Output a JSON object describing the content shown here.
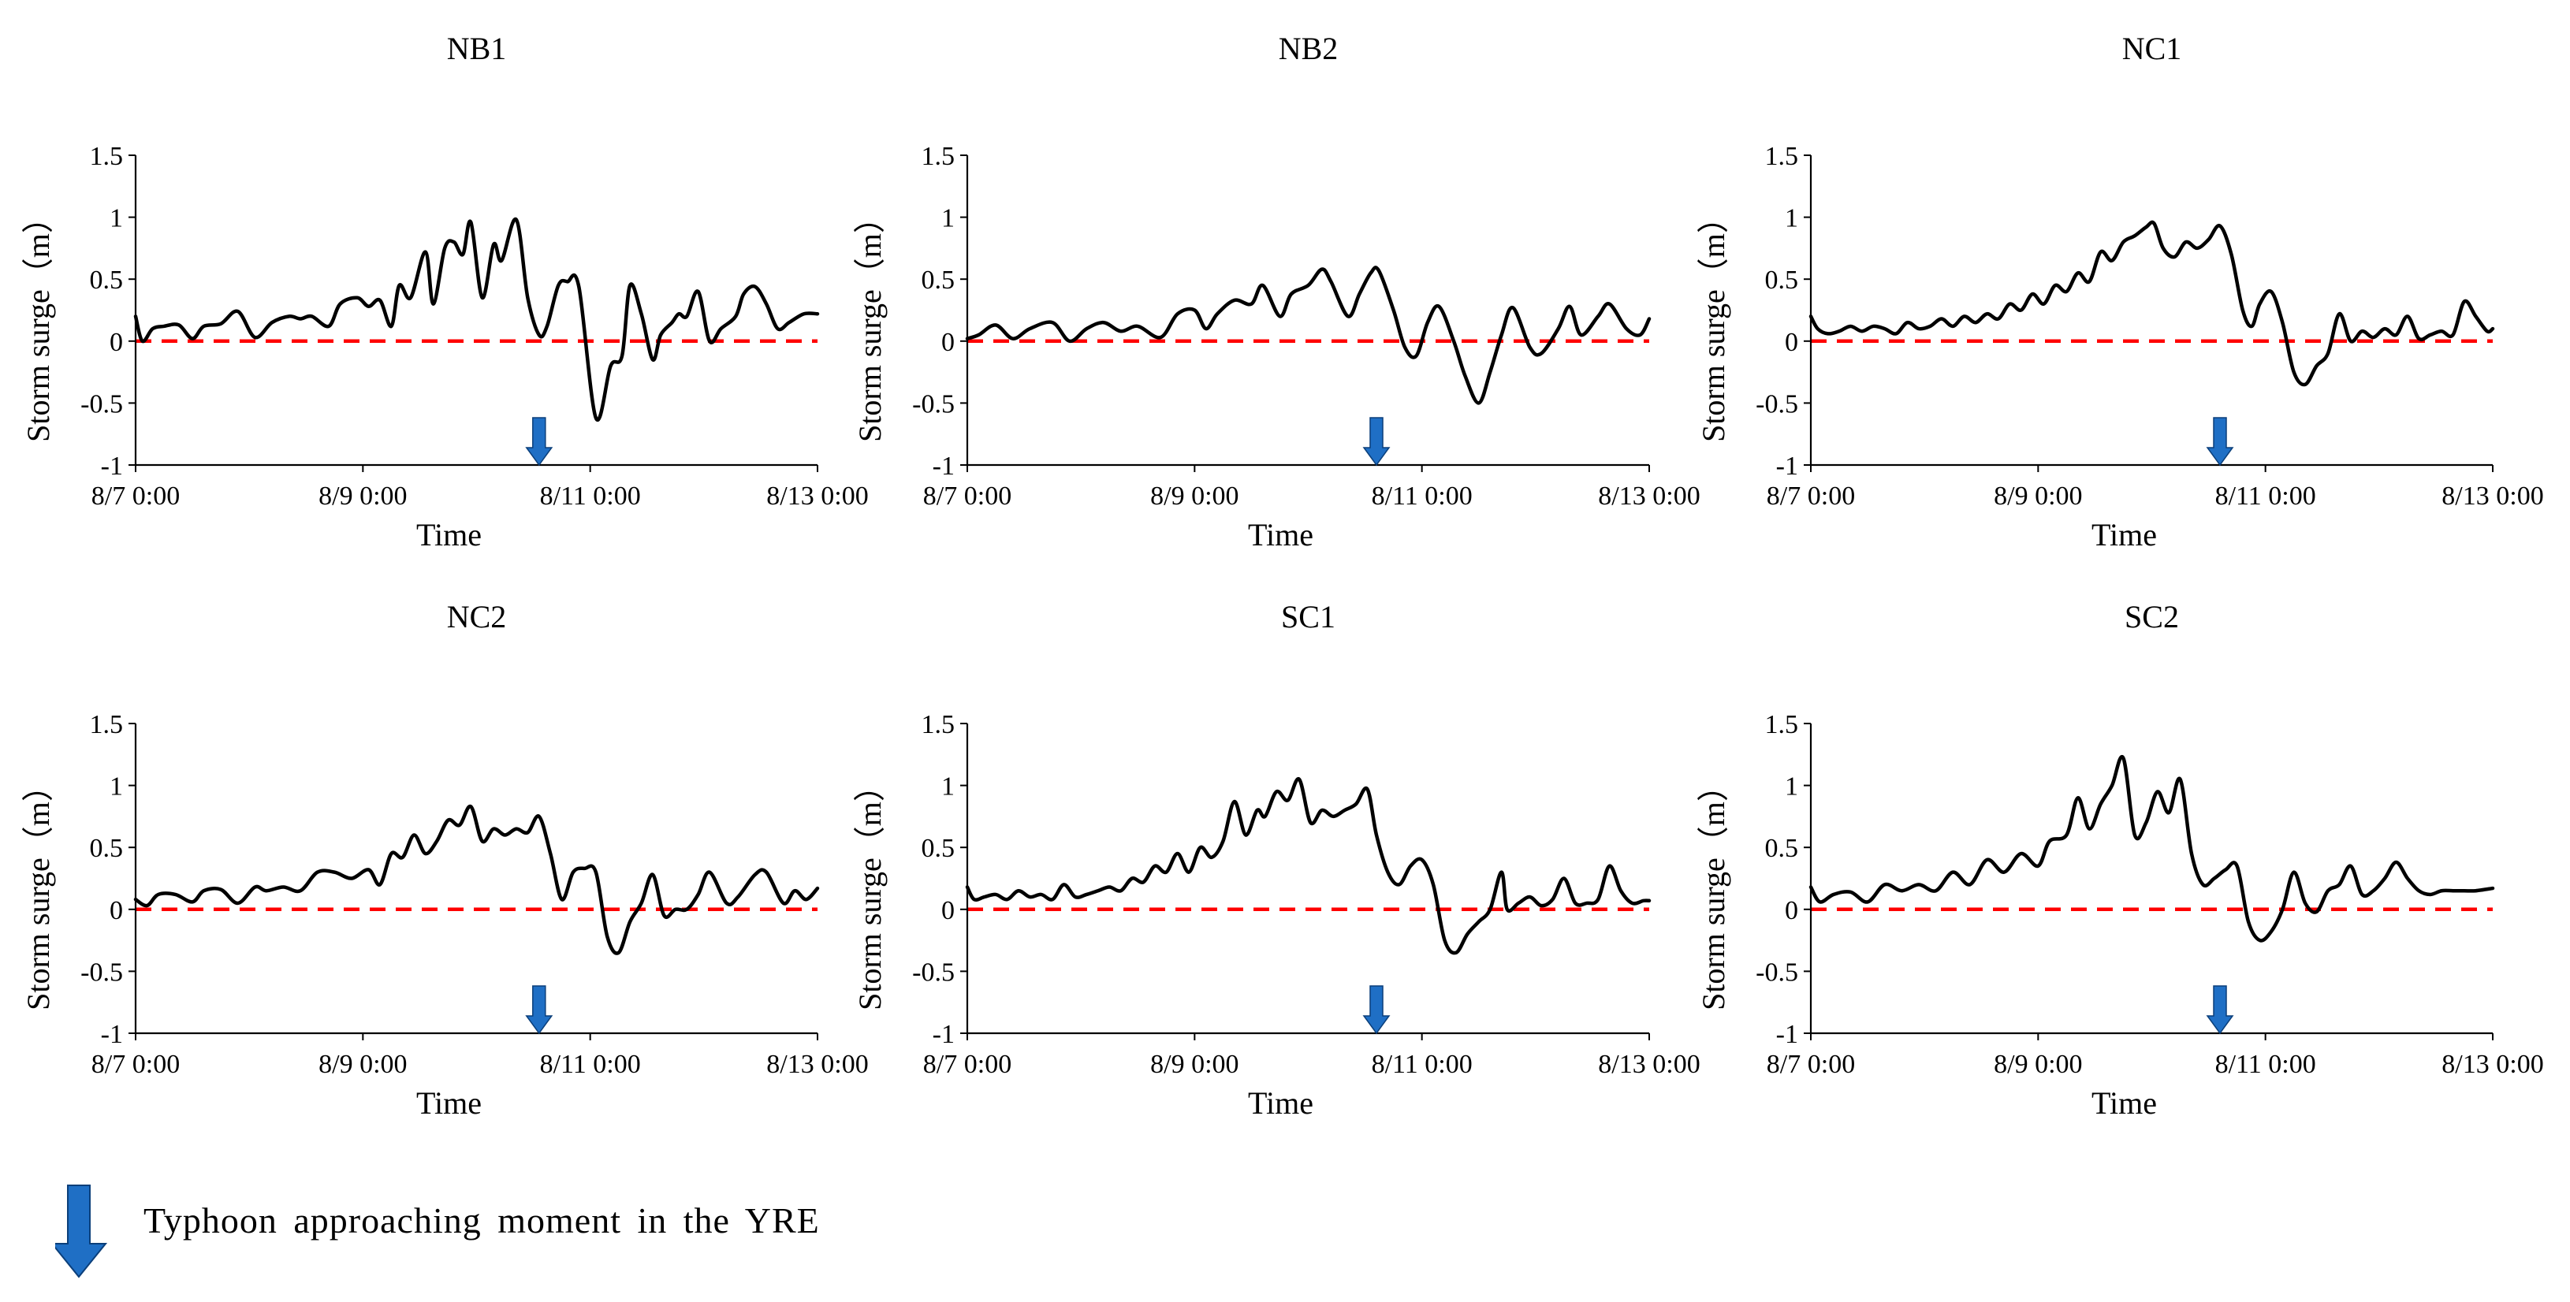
{
  "figure": {
    "legend_label": "Typhoon approaching moment in the YRE",
    "colors": {
      "series": "#000000",
      "zero_line": "#ff0000",
      "arrow": "#1f6fc5",
      "arrow_edge": "#0b3f7a",
      "axis": "#000000"
    }
  },
  "chart_data": [
    {
      "type": "line",
      "title": "NB1",
      "xlabel": "Time",
      "ylabel": "Storm surge（m）",
      "xlim": [
        0,
        6
      ],
      "ylim": [
        -1,
        1.5
      ],
      "yticks": [
        -1,
        -0.5,
        0,
        0.5,
        1,
        1.5
      ],
      "ytick_labels": [
        "-1",
        "-0.5",
        "0",
        "0.5",
        "1",
        "1.5"
      ],
      "xticks": [
        0,
        2,
        4,
        6
      ],
      "xtick_labels": [
        "8/7 0:00",
        "8/9 0:00",
        "8/11 0:00",
        "8/13 0:00"
      ],
      "typhoon_time": 3.55,
      "reference_line": 0,
      "series": [
        {
          "name": "Storm surge",
          "x": [
            0,
            0.06,
            0.15,
            0.25,
            0.38,
            0.5,
            0.6,
            0.75,
            0.9,
            1.05,
            1.2,
            1.35,
            1.45,
            1.55,
            1.7,
            1.8,
            1.95,
            2.05,
            2.15,
            2.25,
            2.32,
            2.42,
            2.55,
            2.62,
            2.72,
            2.8,
            2.88,
            2.95,
            3.05,
            3.15,
            3.22,
            3.35,
            3.45,
            3.55,
            3.62,
            3.72,
            3.8,
            3.9,
            4.05,
            4.18,
            4.28,
            4.35,
            4.45,
            4.55,
            4.62,
            4.72,
            4.78,
            4.85,
            4.95,
            5.05,
            5.15,
            5.28,
            5.35,
            5.45,
            5.55,
            5.65,
            5.75,
            5.88,
            6.0
          ],
          "y": [
            0.2,
            0.0,
            0.1,
            0.12,
            0.13,
            0.02,
            0.12,
            0.14,
            0.24,
            0.03,
            0.15,
            0.2,
            0.18,
            0.2,
            0.12,
            0.3,
            0.35,
            0.28,
            0.33,
            0.12,
            0.45,
            0.35,
            0.72,
            0.3,
            0.75,
            0.8,
            0.7,
            0.96,
            0.35,
            0.78,
            0.65,
            0.98,
            0.35,
            0.05,
            0.12,
            0.45,
            0.48,
            0.44,
            -0.62,
            -0.2,
            -0.12,
            0.45,
            0.22,
            -0.15,
            0.05,
            0.15,
            0.22,
            0.2,
            0.4,
            0.0,
            0.1,
            0.2,
            0.38,
            0.44,
            0.3,
            0.1,
            0.15,
            0.22,
            0.22
          ]
        }
      ]
    },
    {
      "type": "line",
      "title": "NB2",
      "xlabel": "Time",
      "ylabel": "Storm surge（m）",
      "xlim": [
        0,
        6
      ],
      "ylim": [
        -1,
        1.5
      ],
      "yticks": [
        -1,
        -0.5,
        0,
        0.5,
        1,
        1.5
      ],
      "ytick_labels": [
        "-1",
        "-0.5",
        "0",
        "0.5",
        "1",
        "1.5"
      ],
      "xticks": [
        0,
        2,
        4,
        6
      ],
      "xtick_labels": [
        "8/7 0:00",
        "8/9 0:00",
        "8/11 0:00",
        "8/13 0:00"
      ],
      "typhoon_time": 3.6,
      "reference_line": 0,
      "series": [
        {
          "name": "Storm surge",
          "x": [
            0,
            0.1,
            0.25,
            0.4,
            0.55,
            0.75,
            0.9,
            1.05,
            1.2,
            1.35,
            1.5,
            1.7,
            1.85,
            2.0,
            2.1,
            2.2,
            2.35,
            2.5,
            2.6,
            2.75,
            2.85,
            3.0,
            3.12,
            3.2,
            3.35,
            3.45,
            3.55,
            3.62,
            3.75,
            3.85,
            3.95,
            4.05,
            4.15,
            4.28,
            4.38,
            4.5,
            4.6,
            4.7,
            4.8,
            4.95,
            5.05,
            5.2,
            5.3,
            5.4,
            5.55,
            5.65,
            5.8,
            5.92,
            6.0
          ],
          "y": [
            0.02,
            0.05,
            0.13,
            0.02,
            0.1,
            0.15,
            0.0,
            0.1,
            0.15,
            0.08,
            0.12,
            0.03,
            0.22,
            0.25,
            0.1,
            0.22,
            0.33,
            0.3,
            0.45,
            0.2,
            0.38,
            0.45,
            0.58,
            0.48,
            0.2,
            0.38,
            0.55,
            0.57,
            0.25,
            -0.05,
            -0.12,
            0.15,
            0.28,
            0.0,
            -0.28,
            -0.5,
            -0.25,
            0.05,
            0.27,
            -0.05,
            -0.1,
            0.1,
            0.28,
            0.05,
            0.2,
            0.3,
            0.1,
            0.05,
            0.18
          ]
        }
      ]
    },
    {
      "type": "line",
      "title": "NC1",
      "xlabel": "Time",
      "ylabel": "Storm surge（m）",
      "xlim": [
        0,
        6
      ],
      "ylim": [
        -1,
        1.5
      ],
      "yticks": [
        -1,
        -0.5,
        0,
        0.5,
        1,
        1.5
      ],
      "ytick_labels": [
        "-1",
        "-0.5",
        "0",
        "0.5",
        "1",
        "1.5"
      ],
      "xticks": [
        0,
        2,
        4,
        6
      ],
      "xtick_labels": [
        "8/7 0:00",
        "8/9 0:00",
        "8/11 0:00",
        "8/13 0:00"
      ],
      "typhoon_time": 3.6,
      "reference_line": 0,
      "series": [
        {
          "name": "Storm surge",
          "x": [
            0,
            0.06,
            0.15,
            0.25,
            0.35,
            0.45,
            0.55,
            0.65,
            0.75,
            0.85,
            0.95,
            1.05,
            1.15,
            1.25,
            1.35,
            1.45,
            1.55,
            1.65,
            1.75,
            1.85,
            1.95,
            2.05,
            2.15,
            2.25,
            2.35,
            2.45,
            2.55,
            2.65,
            2.75,
            2.85,
            2.95,
            3.02,
            3.1,
            3.2,
            3.3,
            3.4,
            3.5,
            3.6,
            3.7,
            3.8,
            3.88,
            3.95,
            4.05,
            4.15,
            4.25,
            4.35,
            4.45,
            4.55,
            4.65,
            4.75,
            4.85,
            4.95,
            5.05,
            5.15,
            5.25,
            5.35,
            5.45,
            5.55,
            5.65,
            5.75,
            5.85,
            5.95,
            6.0
          ],
          "y": [
            0.2,
            0.1,
            0.06,
            0.08,
            0.12,
            0.08,
            0.12,
            0.1,
            0.06,
            0.15,
            0.1,
            0.12,
            0.18,
            0.12,
            0.2,
            0.15,
            0.22,
            0.18,
            0.3,
            0.25,
            0.38,
            0.3,
            0.45,
            0.4,
            0.55,
            0.48,
            0.72,
            0.65,
            0.8,
            0.85,
            0.92,
            0.95,
            0.75,
            0.68,
            0.8,
            0.75,
            0.82,
            0.93,
            0.7,
            0.25,
            0.12,
            0.3,
            0.4,
            0.15,
            -0.25,
            -0.35,
            -0.2,
            -0.1,
            0.22,
            0.0,
            0.08,
            0.03,
            0.1,
            0.05,
            0.2,
            0.02,
            0.05,
            0.08,
            0.05,
            0.32,
            0.2,
            0.08,
            0.1
          ]
        }
      ]
    },
    {
      "type": "line",
      "title": "NC2",
      "xlabel": "Time",
      "ylabel": "Storm surge（m）",
      "xlim": [
        0,
        6
      ],
      "ylim": [
        -1,
        1.5
      ],
      "yticks": [
        -1,
        -0.5,
        0,
        0.5,
        1,
        1.5
      ],
      "ytick_labels": [
        "-1",
        "-0.5",
        "0",
        "0.5",
        "1",
        "1.5"
      ],
      "xticks": [
        0,
        2,
        4,
        6
      ],
      "xtick_labels": [
        "8/7 0:00",
        "8/9 0:00",
        "8/11 0:00",
        "8/13 0:00"
      ],
      "typhoon_time": 3.55,
      "reference_line": 0,
      "series": [
        {
          "name": "Storm surge",
          "x": [
            0,
            0.1,
            0.2,
            0.35,
            0.5,
            0.6,
            0.75,
            0.9,
            1.05,
            1.15,
            1.3,
            1.45,
            1.6,
            1.75,
            1.9,
            2.05,
            2.15,
            2.25,
            2.35,
            2.45,
            2.55,
            2.65,
            2.75,
            2.85,
            2.95,
            3.05,
            3.15,
            3.25,
            3.35,
            3.45,
            3.55,
            3.65,
            3.75,
            3.85,
            3.95,
            4.05,
            4.15,
            4.25,
            4.35,
            4.45,
            4.55,
            4.65,
            4.75,
            4.85,
            4.95,
            5.05,
            5.2,
            5.3,
            5.45,
            5.55,
            5.7,
            5.8,
            5.9,
            6.0
          ],
          "y": [
            0.08,
            0.03,
            0.12,
            0.12,
            0.06,
            0.15,
            0.16,
            0.05,
            0.18,
            0.15,
            0.18,
            0.15,
            0.3,
            0.3,
            0.25,
            0.32,
            0.2,
            0.45,
            0.42,
            0.6,
            0.45,
            0.55,
            0.72,
            0.68,
            0.83,
            0.55,
            0.65,
            0.6,
            0.65,
            0.62,
            0.75,
            0.45,
            0.08,
            0.3,
            0.33,
            0.3,
            -0.22,
            -0.35,
            -0.1,
            0.05,
            0.28,
            -0.05,
            0.0,
            0.0,
            0.12,
            0.3,
            0.05,
            0.1,
            0.28,
            0.3,
            0.05,
            0.15,
            0.08,
            0.17
          ]
        }
      ]
    },
    {
      "type": "line",
      "title": "SC1",
      "xlabel": "Time",
      "ylabel": "Storm surge（m）",
      "xlim": [
        0,
        6
      ],
      "ylim": [
        -1,
        1.5
      ],
      "yticks": [
        -1,
        -0.5,
        0,
        0.5,
        1,
        1.5
      ],
      "ytick_labels": [
        "-1",
        "-0.5",
        "0",
        "0.5",
        "1",
        "1.5"
      ],
      "xticks": [
        0,
        2,
        4,
        6
      ],
      "xtick_labels": [
        "8/7 0:00",
        "8/9 0:00",
        "8/11 0:00",
        "8/13 0:00"
      ],
      "typhoon_time": 3.6,
      "reference_line": 0,
      "series": [
        {
          "name": "Storm surge",
          "x": [
            0,
            0.06,
            0.15,
            0.25,
            0.35,
            0.45,
            0.55,
            0.65,
            0.75,
            0.85,
            0.95,
            1.05,
            1.15,
            1.25,
            1.35,
            1.45,
            1.55,
            1.65,
            1.75,
            1.85,
            1.95,
            2.05,
            2.15,
            2.25,
            2.35,
            2.45,
            2.55,
            2.62,
            2.72,
            2.82,
            2.92,
            3.02,
            3.12,
            3.22,
            3.32,
            3.42,
            3.52,
            3.6,
            3.7,
            3.8,
            3.9,
            4.0,
            4.1,
            4.2,
            4.3,
            4.4,
            4.5,
            4.6,
            4.7,
            4.75,
            4.85,
            4.95,
            5.05,
            5.15,
            5.25,
            5.35,
            5.45,
            5.55,
            5.65,
            5.75,
            5.85,
            5.95,
            6.0
          ],
          "y": [
            0.18,
            0.08,
            0.1,
            0.12,
            0.08,
            0.15,
            0.1,
            0.12,
            0.08,
            0.2,
            0.1,
            0.12,
            0.15,
            0.18,
            0.15,
            0.25,
            0.22,
            0.35,
            0.3,
            0.45,
            0.3,
            0.5,
            0.42,
            0.55,
            0.87,
            0.6,
            0.8,
            0.75,
            0.95,
            0.88,
            1.05,
            0.7,
            0.8,
            0.75,
            0.8,
            0.85,
            0.97,
            0.6,
            0.3,
            0.2,
            0.35,
            0.4,
            0.2,
            -0.25,
            -0.35,
            -0.2,
            -0.1,
            0.0,
            0.3,
            0.0,
            0.05,
            0.1,
            0.03,
            0.08,
            0.25,
            0.05,
            0.05,
            0.08,
            0.35,
            0.15,
            0.05,
            0.07,
            0.07
          ]
        }
      ]
    },
    {
      "type": "line",
      "title": "SC2",
      "xlabel": "Time",
      "ylabel": "Storm surge（m）",
      "xlim": [
        0,
        6
      ],
      "ylim": [
        -1,
        1.5
      ],
      "yticks": [
        -1,
        -0.5,
        0,
        0.5,
        1,
        1.5
      ],
      "ytick_labels": [
        "-1",
        "-0.5",
        "0",
        "0.5",
        "1",
        "1.5"
      ],
      "xticks": [
        0,
        2,
        4,
        6
      ],
      "xtick_labels": [
        "8/7 0:00",
        "8/9 0:00",
        "8/11 0:00",
        "8/13 0:00"
      ],
      "typhoon_time": 3.6,
      "reference_line": 0,
      "series": [
        {
          "name": "Storm surge",
          "x": [
            0,
            0.08,
            0.2,
            0.35,
            0.5,
            0.65,
            0.8,
            0.95,
            1.1,
            1.25,
            1.4,
            1.55,
            1.7,
            1.85,
            2.0,
            2.1,
            2.25,
            2.35,
            2.45,
            2.55,
            2.65,
            2.75,
            2.85,
            2.95,
            3.05,
            3.15,
            3.25,
            3.35,
            3.45,
            3.55,
            3.65,
            3.75,
            3.85,
            3.95,
            4.05,
            4.15,
            4.25,
            4.35,
            4.45,
            4.55,
            4.65,
            4.75,
            4.85,
            4.95,
            5.05,
            5.15,
            5.25,
            5.35,
            5.45,
            5.55,
            5.65,
            5.75,
            5.85,
            6.0
          ],
          "y": [
            0.18,
            0.06,
            0.12,
            0.14,
            0.06,
            0.2,
            0.15,
            0.2,
            0.15,
            0.3,
            0.2,
            0.4,
            0.3,
            0.45,
            0.35,
            0.55,
            0.6,
            0.9,
            0.65,
            0.85,
            1.0,
            1.22,
            0.6,
            0.7,
            0.95,
            0.78,
            1.05,
            0.45,
            0.2,
            0.25,
            0.32,
            0.35,
            -0.1,
            -0.25,
            -0.18,
            0.0,
            0.3,
            0.05,
            -0.02,
            0.15,
            0.2,
            0.35,
            0.12,
            0.15,
            0.25,
            0.38,
            0.25,
            0.15,
            0.12,
            0.15,
            0.15,
            0.15,
            0.15,
            0.17
          ]
        }
      ]
    }
  ]
}
